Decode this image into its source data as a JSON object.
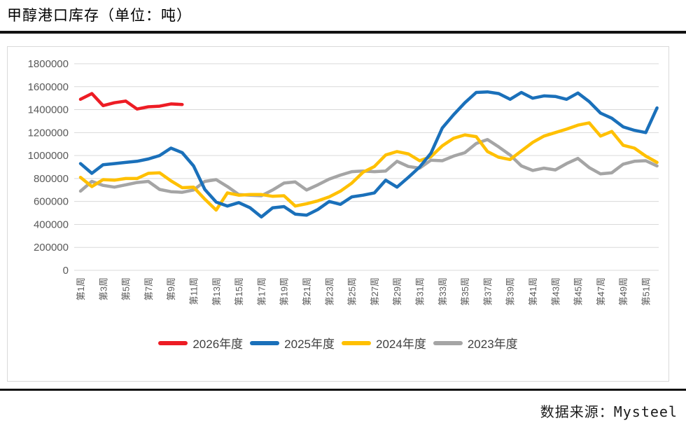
{
  "title": "甲醇港口库存（单位：吨）",
  "source": "数据来源：Mysteel",
  "colors": {
    "red_2026": "#ed1c24",
    "blue_2025": "#1a70ba",
    "yellow_2024": "#ffc000",
    "gray_2023": "#a5a5a5",
    "grid": "#d9d9d9",
    "axis_text": "#595959",
    "panel_border": "#d9d9d9",
    "rule": "#121212"
  },
  "chart_data": {
    "type": "line",
    "title": "甲醇港口库存（单位：吨）",
    "xlabel": "",
    "ylabel": "",
    "ylim": [
      0,
      1800000
    ],
    "y_ticks": [
      0,
      200000,
      400000,
      600000,
      800000,
      1000000,
      1200000,
      1400000,
      1600000,
      1800000
    ],
    "grid": "horizontal",
    "legend_position": "bottom",
    "weeks": 52,
    "x_tick_labels": [
      "第1周",
      "第3周",
      "第5周",
      "第7周",
      "第9周",
      "第11周",
      "第13周",
      "第15周",
      "第17周",
      "第19周",
      "第21周",
      "第23周",
      "第25周",
      "第27周",
      "第29周",
      "第31周",
      "第33周",
      "第35周",
      "第37周",
      "第39周",
      "第41周",
      "第43周",
      "第45周",
      "第47周",
      "第49周",
      "第51周"
    ],
    "series": [
      {
        "name": "2026年度",
        "color": "#ed1c24",
        "values": [
          1490000,
          1540000,
          1435000,
          1460000,
          1475000,
          1405000,
          1425000,
          1430000,
          1450000,
          1445000
        ]
      },
      {
        "name": "2025年度",
        "color": "#1a70ba",
        "values": [
          930000,
          845000,
          920000,
          930000,
          940000,
          950000,
          970000,
          1000000,
          1065000,
          1025000,
          910000,
          705000,
          595000,
          560000,
          590000,
          545000,
          465000,
          545000,
          555000,
          490000,
          480000,
          530000,
          600000,
          575000,
          640000,
          655000,
          675000,
          785000,
          725000,
          810000,
          900000,
          1020000,
          1240000,
          1355000,
          1460000,
          1550000,
          1555000,
          1540000,
          1490000,
          1550000,
          1500000,
          1520000,
          1515000,
          1490000,
          1545000,
          1470000,
          1370000,
          1325000,
          1250000,
          1220000,
          1200000,
          1415000
        ]
      },
      {
        "name": "2024年度",
        "color": "#ffc000",
        "values": [
          810000,
          730000,
          790000,
          785000,
          800000,
          800000,
          845000,
          850000,
          780000,
          720000,
          725000,
          620000,
          525000,
          675000,
          655000,
          660000,
          660000,
          645000,
          650000,
          560000,
          580000,
          605000,
          640000,
          690000,
          760000,
          855000,
          905000,
          1005000,
          1035000,
          1015000,
          955000,
          990000,
          1085000,
          1150000,
          1180000,
          1165000,
          1035000,
          985000,
          965000,
          1040000,
          1115000,
          1170000,
          1200000,
          1230000,
          1265000,
          1285000,
          1170000,
          1210000,
          1090000,
          1065000,
          995000,
          940000
        ]
      },
      {
        "name": "2023年度",
        "color": "#a5a5a5",
        "values": [
          690000,
          775000,
          740000,
          725000,
          745000,
          765000,
          775000,
          705000,
          685000,
          680000,
          700000,
          775000,
          790000,
          730000,
          660000,
          655000,
          650000,
          700000,
          760000,
          770000,
          700000,
          745000,
          795000,
          830000,
          860000,
          865000,
          860000,
          865000,
          950000,
          905000,
          890000,
          960000,
          955000,
          995000,
          1025000,
          1105000,
          1140000,
          1075000,
          1005000,
          910000,
          870000,
          890000,
          875000,
          930000,
          975000,
          895000,
          840000,
          850000,
          925000,
          950000,
          955000,
          910000
        ]
      }
    ]
  }
}
